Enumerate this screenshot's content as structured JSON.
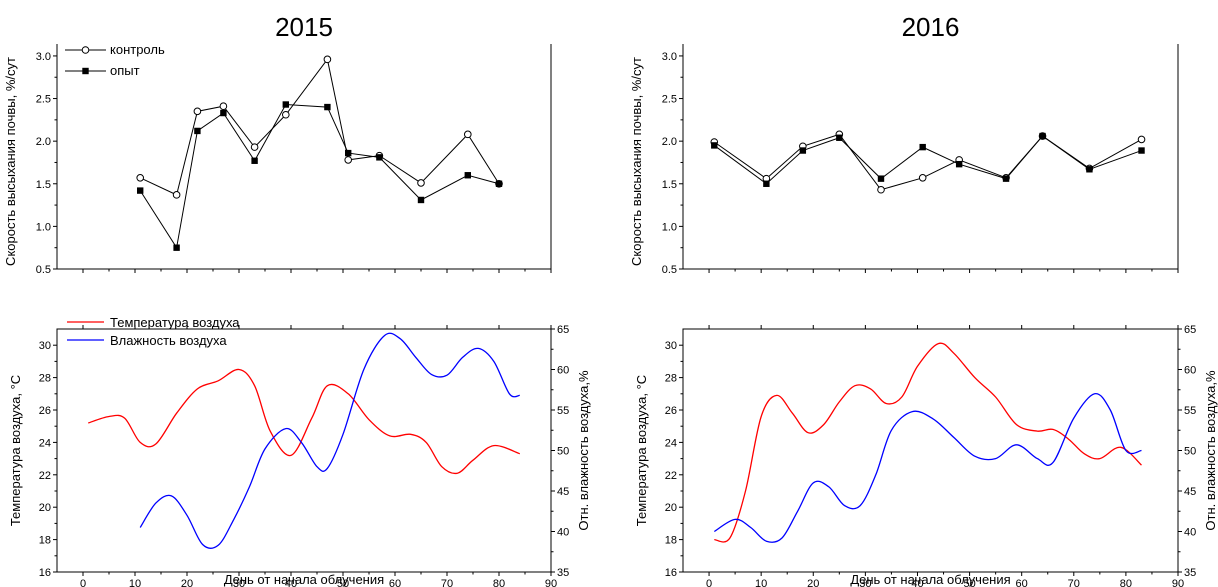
{
  "colors": {
    "temperature": "#ff0000",
    "humidity": "#0000ff",
    "markers": "#000000"
  },
  "axes": {
    "xlabel": "День от начала облучения",
    "speed_ylabel": "Скорость высыхания почвы, %/сут",
    "temp_ylabel": "Температура воздуха, °C",
    "hum_ylabel": "Отн. влажность воздуха,%"
  },
  "legend": {
    "control": "контроль",
    "experiment": "опыт",
    "temperature": "Температура воздуха",
    "humidity": "Влажность воздуха"
  },
  "chart_data": [
    {
      "type": "line",
      "title": "2015",
      "panel": "speed",
      "ylabel": "Скорость высыхания почвы, %/сут",
      "ylim": [
        0.5,
        3.0
      ],
      "xlim": [
        -5,
        90
      ],
      "legend_position": "top-left",
      "series": [
        {
          "name": "контроль",
          "marker": "open-circle",
          "x": [
            11,
            18,
            22,
            27,
            33,
            39,
            47,
            51,
            57,
            65,
            74,
            80
          ],
          "y": [
            1.57,
            1.37,
            2.35,
            2.41,
            1.93,
            2.31,
            2.96,
            1.78,
            1.83,
            1.51,
            2.08,
            1.5
          ]
        },
        {
          "name": "опыт",
          "marker": "filled-square",
          "x": [
            11,
            18,
            22,
            27,
            33,
            39,
            47,
            51,
            57,
            65,
            74,
            80
          ],
          "y": [
            1.42,
            0.75,
            2.12,
            2.33,
            1.77,
            2.43,
            2.4,
            1.86,
            1.81,
            1.31,
            1.6,
            1.5
          ]
        }
      ]
    },
    {
      "type": "line",
      "title": "2016",
      "panel": "speed",
      "ylabel": "Скорость высыхания почвы, %/сут",
      "ylim": [
        0.5,
        3.0
      ],
      "xlim": [
        -5,
        90
      ],
      "series": [
        {
          "name": "контроль",
          "marker": "open-circle",
          "x": [
            1,
            11,
            18,
            25,
            33,
            41,
            48,
            57,
            64,
            73,
            83
          ],
          "y": [
            1.99,
            1.56,
            1.94,
            2.08,
            1.43,
            1.57,
            1.78,
            1.57,
            2.06,
            1.68,
            2.02
          ]
        },
        {
          "name": "опыт",
          "marker": "filled-square",
          "x": [
            1,
            11,
            18,
            25,
            33,
            41,
            48,
            57,
            64,
            73,
            83
          ],
          "y": [
            1.95,
            1.5,
            1.89,
            2.04,
            1.56,
            1.93,
            1.73,
            1.56,
            2.06,
            1.67,
            1.89
          ]
        }
      ]
    },
    {
      "type": "line",
      "title": "",
      "panel": "weather",
      "xlabel": "День от начала облучения",
      "ylabel": "Температура воздуха, °C",
      "y2label": "Отн. влажность воздуха,%",
      "xlim": [
        -5,
        90
      ],
      "ylim": [
        16,
        31
      ],
      "y2lim": [
        35,
        65
      ],
      "legend_position": "top-left",
      "series": [
        {
          "name": "Температура воздуха",
          "axis": "left",
          "color": "#ff0000",
          "x": [
            1,
            5,
            8,
            11,
            14,
            18,
            22,
            26,
            30,
            33,
            36,
            40,
            44,
            47,
            51,
            55,
            59,
            63,
            66,
            69,
            72,
            75,
            79,
            84
          ],
          "y": [
            25.2,
            25.6,
            25.5,
            24.0,
            23.9,
            25.8,
            27.3,
            27.8,
            28.5,
            27.5,
            24.7,
            23.2,
            25.5,
            27.5,
            27.0,
            25.4,
            24.4,
            24.5,
            24.0,
            22.5,
            22.1,
            22.9,
            23.8,
            23.3
          ]
        },
        {
          "name": "Влажность воздуха",
          "axis": "right",
          "color": "#0000ff",
          "x": [
            11,
            14,
            17,
            20,
            23,
            26,
            29,
            32,
            35,
            39,
            42,
            45,
            47,
            50,
            54,
            58,
            61,
            64,
            67,
            70,
            73,
            76,
            79,
            82,
            84
          ],
          "y": [
            40.5,
            43.5,
            44.4,
            42.0,
            38.4,
            38.3,
            41.5,
            45.5,
            50.2,
            52.7,
            51.0,
            48.0,
            47.8,
            52.0,
            60.0,
            64.2,
            63.8,
            61.5,
            59.4,
            59.3,
            61.5,
            62.6,
            61.0,
            57.0,
            56.8
          ]
        }
      ]
    },
    {
      "type": "line",
      "title": "",
      "panel": "weather",
      "xlabel": "День от начала облучения",
      "ylabel": "Температура воздуха, °C",
      "y2label": "Отн. влажность воздуха,%",
      "xlim": [
        -5,
        90
      ],
      "ylim": [
        16,
        31
      ],
      "y2lim": [
        35,
        65
      ],
      "series": [
        {
          "name": "Температура воздуха",
          "axis": "left",
          "color": "#ff0000",
          "x": [
            1,
            4,
            7,
            10,
            13,
            16,
            19,
            22,
            25,
            28,
            31,
            34,
            37,
            40,
            44,
            47,
            51,
            55,
            59,
            63,
            66,
            69,
            72,
            75,
            79,
            83
          ],
          "y": [
            18.0,
            18.1,
            21.0,
            25.6,
            26.9,
            25.8,
            24.6,
            25.1,
            26.5,
            27.5,
            27.3,
            26.4,
            26.8,
            28.7,
            30.1,
            29.5,
            28.0,
            26.8,
            25.1,
            24.7,
            24.8,
            24.2,
            23.3,
            23.0,
            23.7,
            22.6
          ]
        },
        {
          "name": "Влажность воздуха",
          "axis": "right",
          "color": "#0000ff",
          "x": [
            1,
            5,
            8,
            11,
            14,
            17,
            20,
            23,
            26,
            29,
            32,
            35,
            39,
            43,
            47,
            51,
            55,
            59,
            63,
            66,
            70,
            74,
            77,
            80,
            83
          ],
          "y": [
            40.0,
            41.5,
            40.5,
            38.8,
            39.2,
            42.5,
            46.0,
            45.5,
            43.2,
            43.2,
            47.0,
            52.5,
            54.8,
            53.9,
            51.6,
            49.3,
            49.0,
            50.7,
            49.0,
            48.5,
            54.0,
            57.0,
            55.0,
            50.0,
            50.0
          ]
        }
      ]
    }
  ]
}
